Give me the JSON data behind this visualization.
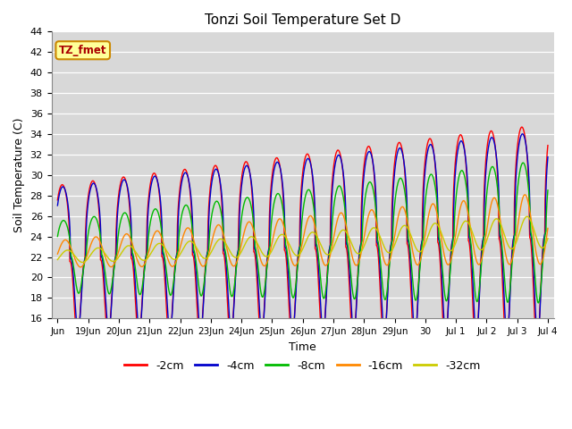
{
  "title": "Tonzi Soil Temperature Set D",
  "xlabel": "Time",
  "ylabel": "Soil Temperature (C)",
  "ylim": [
    16,
    44
  ],
  "yticks": [
    16,
    18,
    20,
    22,
    24,
    26,
    28,
    30,
    32,
    34,
    36,
    38,
    40,
    42,
    44
  ],
  "label_box_text": "TZ_fmet",
  "label_box_color": "#ffff99",
  "label_box_edge": "#cc8800",
  "label_text_color": "#aa0000",
  "series": [
    {
      "label": "-2cm",
      "color": "#ff0000"
    },
    {
      "label": "-4cm",
      "color": "#0000cc"
    },
    {
      "label": "-8cm",
      "color": "#00bb00"
    },
    {
      "label": "-16cm",
      "color": "#ff8800"
    },
    {
      "label": "-32cm",
      "color": "#cccc00"
    }
  ],
  "background_color": "#d8d8d8",
  "x_tick_labels": [
    "Jun",
    "19Jun",
    "20Jun",
    "21Jun",
    "22Jun",
    "23Jun",
    "24Jun",
    "25Jun",
    "26Jun",
    "27Jun",
    "28Jun",
    "29Jun",
    "30",
    "Jul 1",
    "Jul 2",
    "Jul 3",
    "Jul 4"
  ],
  "n_points": 1600,
  "end_day": 16.0
}
